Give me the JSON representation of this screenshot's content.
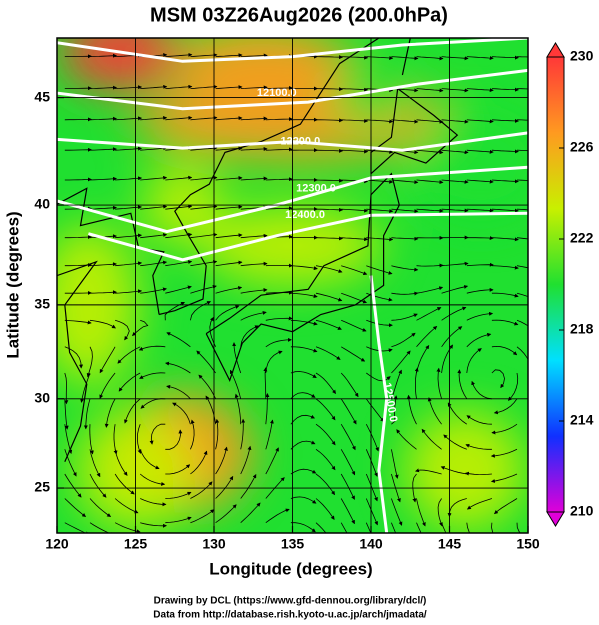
{
  "chart_data": {
    "type": "map",
    "title": "MSM 03Z26Aug2026 (200.0hPa)",
    "x_label": "Longitude (degrees)",
    "y_label": "Latitude  (degrees)",
    "xlim": [
      120,
      150
    ],
    "ylim": [
      22.4,
      47.6
    ],
    "xticks": [
      120,
      125,
      130,
      135,
      140,
      145,
      150
    ],
    "yticks": [
      25,
      30,
      35,
      40,
      45
    ],
    "y_scale": "mercator",
    "grid": true,
    "colorbar": {
      "lim": [
        210,
        230
      ],
      "ticks": [
        210,
        214,
        218,
        222,
        226,
        230
      ],
      "colors": [
        "#e000d8",
        "#1030ff",
        "#00e0ff",
        "#20e030",
        "#c8f000",
        "#ff9a20",
        "#ff3838"
      ]
    },
    "contour_labels": [
      "12100.0",
      "12200.0",
      "12300.0",
      "12400.0",
      "12500.0"
    ],
    "footer": [
      "Drawing by DCL (https://www.gfd-dennou.org/library/dcl/)",
      "Data from http://database.rish.kyoto-u.ac.jp/arch/jmadata/"
    ]
  }
}
